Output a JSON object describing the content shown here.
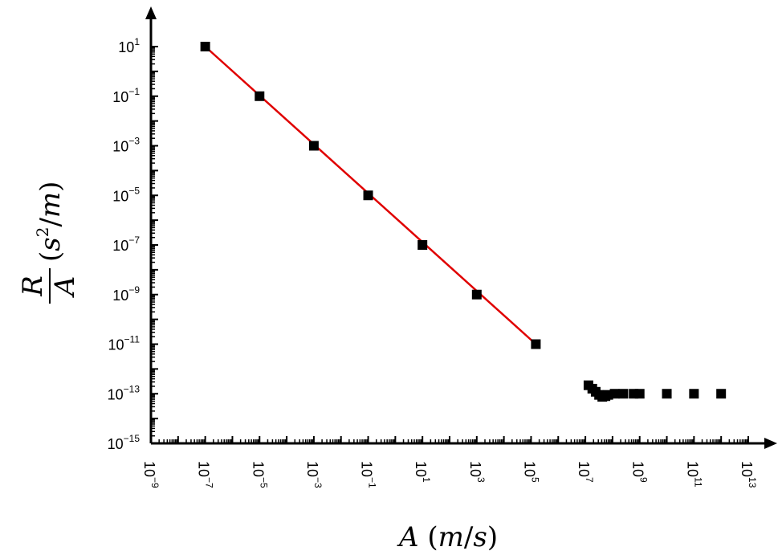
{
  "chart_data": {
    "type": "scatter",
    "x_scale": "log",
    "y_scale": "log",
    "xlabel": "A (m/s)",
    "ylabel": "R/A (s^2/m)",
    "xlim": [
      1e-09,
      10000000000000.0
    ],
    "ylim": [
      1e-15,
      10.0
    ],
    "x_ticks": [
      {
        "base": "10",
        "exp": "−9",
        "value": 1e-09
      },
      {
        "base": "10",
        "exp": "−7",
        "value": 1e-07
      },
      {
        "base": "10",
        "exp": "−5",
        "value": 1e-05
      },
      {
        "base": "10",
        "exp": "−3",
        "value": 0.001
      },
      {
        "base": "10",
        "exp": "−1",
        "value": 0.1
      },
      {
        "base": "10",
        "exp": "1",
        "value": 10.0
      },
      {
        "base": "10",
        "exp": "3",
        "value": 1000.0
      },
      {
        "base": "10",
        "exp": "5",
        "value": 100000.0
      },
      {
        "base": "10",
        "exp": "7",
        "value": 10000000.0
      },
      {
        "base": "10",
        "exp": "9",
        "value": 1000000000.0
      },
      {
        "base": "10",
        "exp": "11",
        "value": 100000000000.0
      },
      {
        "base": "10",
        "exp": "13",
        "value": 10000000000000.0
      }
    ],
    "y_ticks": [
      {
        "base": "10",
        "exp": "1",
        "value": 10.0
      },
      {
        "base": "10",
        "exp": "−1",
        "value": 0.1
      },
      {
        "base": "10",
        "exp": "−3",
        "value": 0.001
      },
      {
        "base": "10",
        "exp": "−5",
        "value": 1e-05
      },
      {
        "base": "10",
        "exp": "−7",
        "value": 1e-07
      },
      {
        "base": "10",
        "exp": "−9",
        "value": 1e-09
      },
      {
        "base": "10",
        "exp": "−11",
        "value": 1e-11
      },
      {
        "base": "10",
        "exp": "−13",
        "value": 1e-13
      },
      {
        "base": "10",
        "exp": "−15",
        "value": 1e-15
      }
    ],
    "series": [
      {
        "marker": "square",
        "color": "#000000",
        "points": [
          {
            "x": 1e-07,
            "y": 10
          },
          {
            "x": 1e-05,
            "y": 0.1
          },
          {
            "x": 0.001,
            "y": 0.001
          },
          {
            "x": 0.1,
            "y": 1e-05
          },
          {
            "x": 10,
            "y": 1e-07
          },
          {
            "x": 1000,
            "y": 1e-09
          },
          {
            "x": 150000.0,
            "y": 1e-11
          },
          {
            "x": 13000000.0,
            "y": 2.2e-13
          },
          {
            "x": 18000000.0,
            "y": 1.6e-13
          },
          {
            "x": 24000000.0,
            "y": 1.2e-13
          },
          {
            "x": 32000000.0,
            "y": 9e-14
          },
          {
            "x": 42000000.0,
            "y": 7.5e-14
          },
          {
            "x": 55000000.0,
            "y": 8e-14
          },
          {
            "x": 70000000.0,
            "y": 9e-14
          },
          {
            "x": 120000000.0,
            "y": 1e-13
          },
          {
            "x": 250000000.0,
            "y": 1e-13
          },
          {
            "x": 600000000.0,
            "y": 1e-13
          },
          {
            "x": 1000000000.0,
            "y": 1e-13
          },
          {
            "x": 10000000000.0,
            "y": 1e-13
          },
          {
            "x": 100000000000.0,
            "y": 1e-13
          },
          {
            "x": 1000000000000.0,
            "y": 1e-13
          }
        ]
      }
    ],
    "fit_line": {
      "color": "#e00000",
      "points": [
        {
          "x": 1e-07,
          "y": 10
        },
        {
          "x": 150000.0,
          "y": 1e-11
        }
      ]
    },
    "axis_color": "#000000"
  }
}
